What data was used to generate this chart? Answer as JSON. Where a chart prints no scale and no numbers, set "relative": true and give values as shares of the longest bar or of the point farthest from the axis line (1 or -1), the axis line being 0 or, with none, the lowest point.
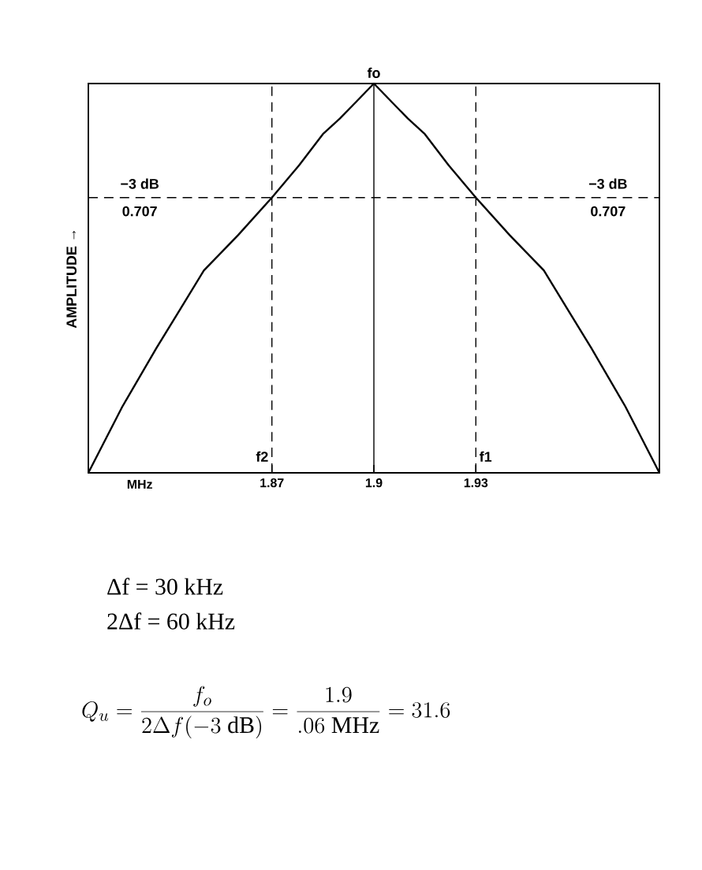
{
  "chart_data": {
    "type": "line",
    "relative": true,
    "xlabel": "MHz",
    "ylabel": "AMPLITUDE →",
    "xlim": [
      1.816,
      1.984
    ],
    "xticks": [
      1.87,
      1.9,
      1.93
    ],
    "series": [
      {
        "color": "#000000",
        "x": [
          1.816,
          1.826,
          1.836,
          1.843,
          1.85,
          1.86,
          1.87,
          1.878,
          1.885,
          1.89,
          1.895,
          1.9,
          1.905,
          1.91,
          1.915,
          1.922,
          1.93,
          1.94,
          1.95,
          1.957,
          1.964,
          1.974,
          1.984
        ],
        "values": [
          0,
          0.17,
          0.32,
          0.42,
          0.52,
          0.61,
          0.707,
          0.79,
          0.87,
          0.91,
          0.955,
          1,
          0.955,
          0.91,
          0.87,
          0.79,
          0.707,
          0.61,
          0.52,
          0.42,
          0.32,
          0.17,
          0
        ]
      }
    ],
    "ref_lines": [
      {
        "axis": "y",
        "value": 0.707,
        "label": "−3 dB",
        "line_style": "dashed"
      },
      {
        "axis": "x",
        "value": 1.87,
        "label": "f2",
        "line_style": "dashed"
      },
      {
        "axis": "x",
        "value": 1.9,
        "label": "fo",
        "line_style": "solid"
      },
      {
        "axis": "x",
        "value": 1.93,
        "label": "f1",
        "line_style": "dashed"
      }
    ],
    "annotations": [
      "0.707",
      "−3 dB",
      "0.707",
      "Δf = 30 kHz",
      "2Δf = 60 kHz",
      "Q_{u} = \\frac{f_{o}}{2\\Delta f(-3\\ \\mathrm{dB})} = \\frac{1.9}{.06\\ \\mathrm{MHz}} = 31.6"
    ],
    "grid": false,
    "marker": "none",
    "line_style": "solid"
  }
}
